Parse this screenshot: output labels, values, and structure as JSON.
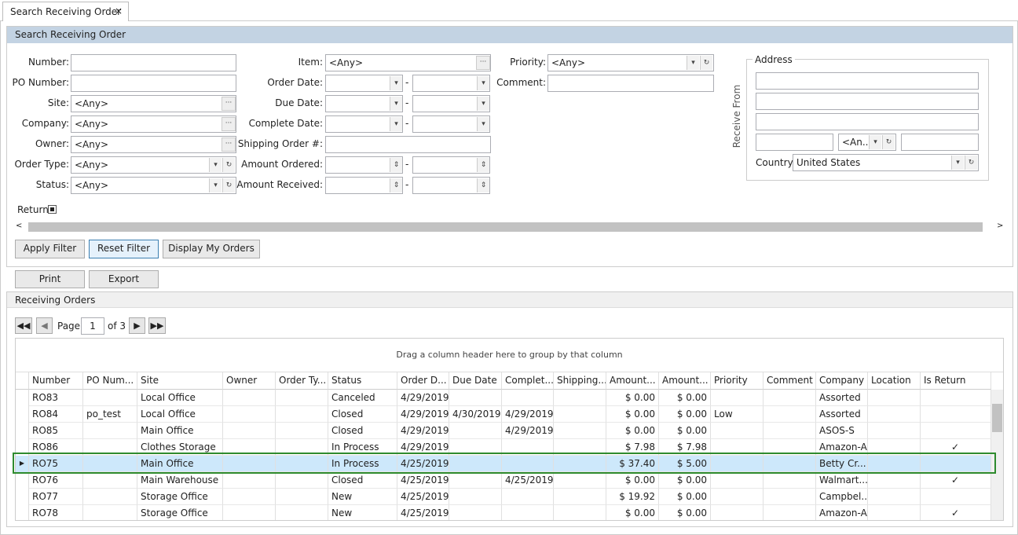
{
  "tab": {
    "title": "Search Receiving Order",
    "close": "×"
  },
  "search_panel": {
    "title": "Search Receiving Order"
  },
  "filters": {
    "range_separator": "-",
    "col1": [
      {
        "label": "Number:"
      },
      {
        "label": "PO Number:"
      },
      {
        "label": "Site:",
        "value": "<Any>"
      },
      {
        "label": "Company:",
        "value": "<Any>"
      },
      {
        "label": "Owner:",
        "value": "<Any>"
      },
      {
        "label": "Order Type:",
        "value": "<Any>"
      },
      {
        "label": "Status:",
        "value": "<Any>"
      }
    ],
    "col2": [
      {
        "label": "Item:",
        "value": "<Any>"
      },
      {
        "label": "Order Date:"
      },
      {
        "label": "Due Date:"
      },
      {
        "label": "Complete Date:"
      },
      {
        "label": "Shipping Order #:"
      },
      {
        "label": "Amount Ordered:"
      },
      {
        "label": "Amount Received:"
      }
    ],
    "col3": [
      {
        "label": "Priority:",
        "value": "<Any>"
      },
      {
        "label": "Comment:"
      }
    ],
    "return_label": "Return"
  },
  "address": {
    "title": "Address",
    "side_label": "Receive From",
    "state_value": "<An...",
    "country_label": "Country:",
    "country_value": "United States"
  },
  "buttons": [
    "Apply Filter",
    "Reset Filter",
    "Display My Orders"
  ],
  "actions": [
    "Print",
    "Export"
  ],
  "orders": {
    "title": "Receiving Orders",
    "pager": {
      "page_label": "Page",
      "page": "1",
      "of_label": "of 3"
    },
    "group_hint": "Drag a column header here to group by that column",
    "columns": [
      "Number",
      "PO Num...",
      "Site",
      "Owner",
      "Order Ty...",
      "Status",
      "Order D...",
      "Due Date",
      "Complet...",
      "Shipping...",
      "Amount...",
      "Amount...",
      "Priority",
      "Comment",
      "Company",
      "Location",
      "Is Return"
    ],
    "selected_row": 4,
    "rows": [
      {
        "cells": [
          "RO83",
          null,
          "Local Office",
          null,
          null,
          "Canceled",
          "4/29/2019",
          null,
          null,
          null,
          "$ 0.00",
          "$ 0.00",
          null,
          null,
          "Assorted",
          null
        ],
        "is_return": false
      },
      {
        "cells": [
          "RO84",
          "po_test",
          "Local Office",
          null,
          null,
          "Closed",
          "4/29/2019",
          "4/30/2019",
          "4/29/2019",
          null,
          "$ 0.00",
          "$ 0.00",
          "Low",
          null,
          "Assorted",
          null
        ],
        "is_return": false
      },
      {
        "cells": [
          "RO85",
          null,
          "Main Office",
          null,
          null,
          "Closed",
          "4/29/2019",
          null,
          "4/29/2019",
          null,
          "$ 0.00",
          "$ 0.00",
          null,
          null,
          "ASOS-S",
          null
        ],
        "is_return": false
      },
      {
        "cells": [
          "RO86",
          null,
          "Clothes Storage",
          null,
          null,
          "In Process",
          "4/29/2019",
          null,
          null,
          null,
          "$ 7.98",
          "$ 7.98",
          null,
          null,
          "Amazon-A",
          null
        ],
        "is_return": true
      },
      {
        "cells": [
          "RO75",
          null,
          "Main Office",
          null,
          null,
          "In Process",
          "4/25/2019",
          null,
          null,
          null,
          "$ 37.40",
          "$ 5.00",
          null,
          null,
          "Betty Cr...",
          null
        ],
        "is_return": false
      },
      {
        "cells": [
          "RO76",
          null,
          "Main Warehouse",
          null,
          null,
          "Closed",
          "4/25/2019",
          null,
          "4/25/2019",
          null,
          "$ 0.00",
          "$ 0.00",
          null,
          null,
          "Walmart...",
          null
        ],
        "is_return": true
      },
      {
        "cells": [
          "RO77",
          null,
          "Storage Office",
          null,
          null,
          "New",
          "4/25/2019",
          null,
          null,
          null,
          "$ 19.92",
          "$ 0.00",
          null,
          null,
          "Campbel...",
          null
        ],
        "is_return": false
      },
      {
        "cells": [
          "RO78",
          null,
          "Storage Office",
          null,
          null,
          "New",
          "4/25/2019",
          null,
          null,
          null,
          "$ 0.00",
          "$ 0.00",
          null,
          null,
          "Amazon-A",
          null
        ],
        "is_return": true
      }
    ]
  }
}
